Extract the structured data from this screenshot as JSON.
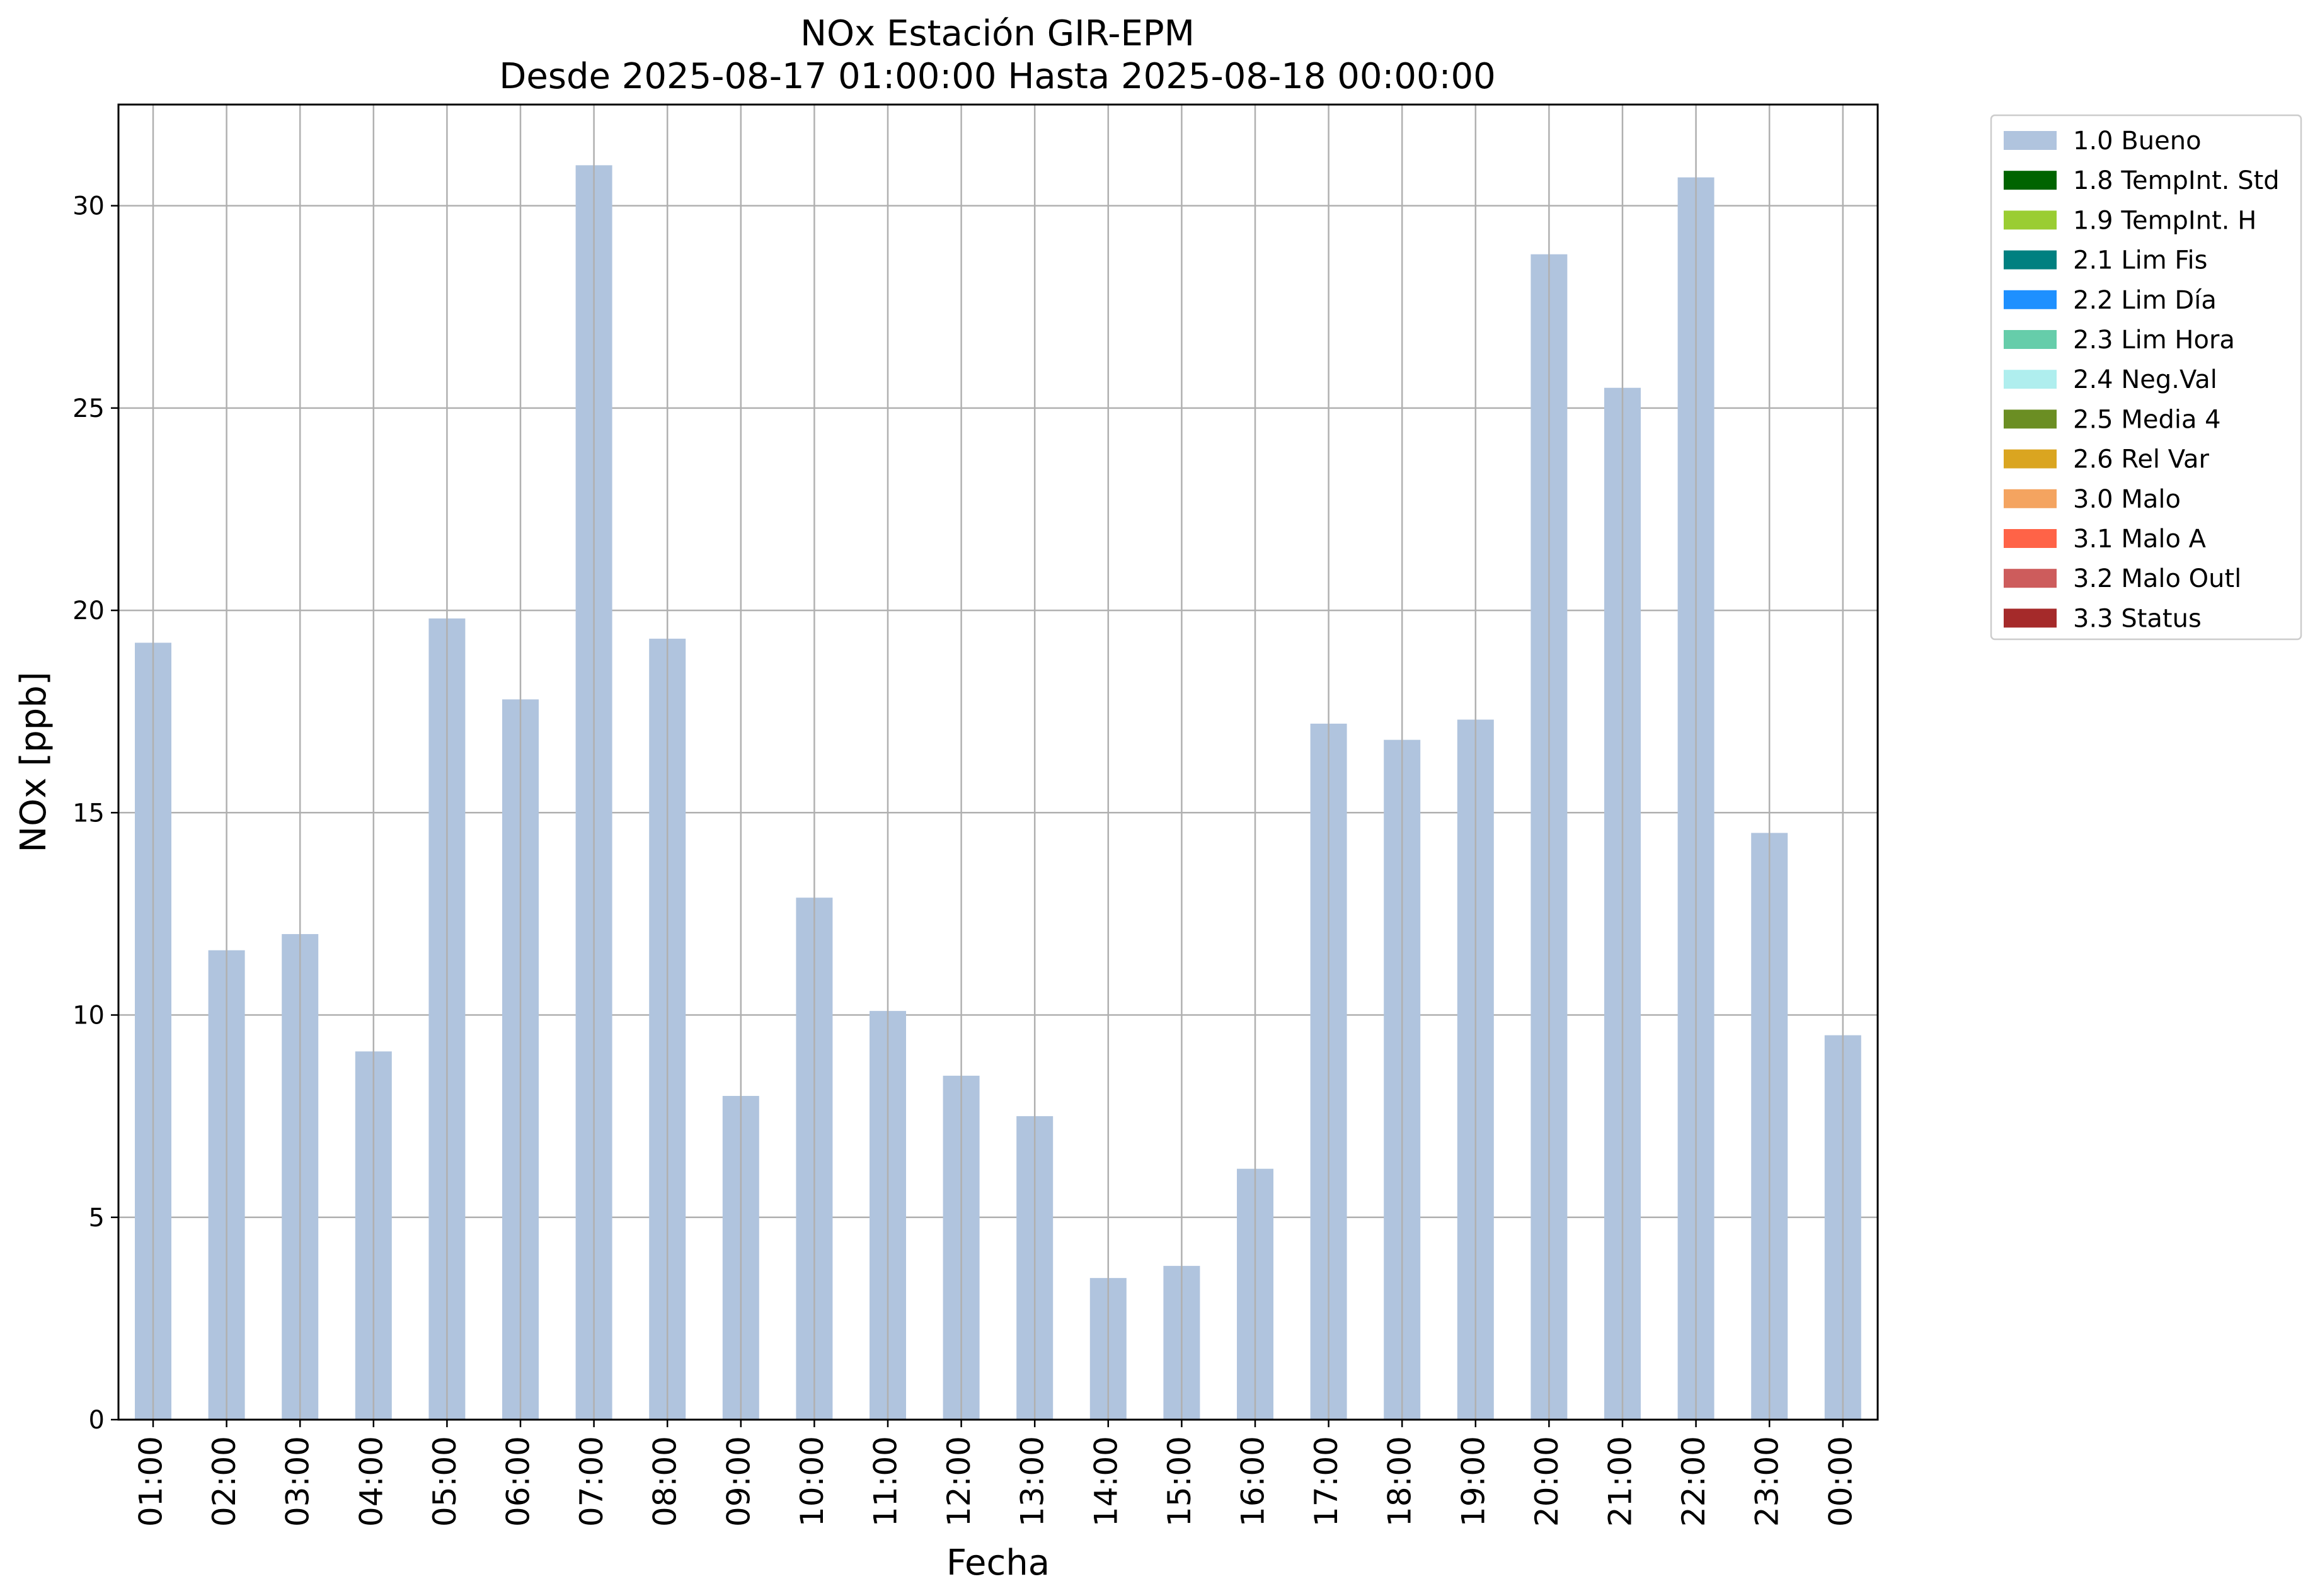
{
  "chart_data": {
    "type": "bar",
    "title": "NOx Estación GIR-EPM",
    "subtitle": "Desde 2025-08-17 01:00:00 Hasta 2025-08-18 00:00:00",
    "xlabel": "Fecha",
    "ylabel": "NOx [ppb]",
    "ylim": [
      0,
      32.5
    ],
    "yticks": [
      0,
      5,
      10,
      15,
      20,
      25,
      30
    ],
    "grid": true,
    "legend_position": "outside-right",
    "categories": [
      "01:00",
      "02:00",
      "03:00",
      "04:00",
      "05:00",
      "06:00",
      "07:00",
      "08:00",
      "09:00",
      "10:00",
      "11:00",
      "12:00",
      "13:00",
      "14:00",
      "15:00",
      "16:00",
      "17:00",
      "18:00",
      "19:00",
      "20:00",
      "21:00",
      "22:00",
      "23:00",
      "00:00"
    ],
    "series": [
      {
        "name": "1.0 Bueno",
        "color": "#b0c4de",
        "values": [
          19.2,
          11.6,
          12.0,
          9.1,
          19.8,
          17.8,
          31.0,
          19.3,
          8.0,
          12.9,
          10.1,
          8.5,
          7.5,
          3.5,
          3.8,
          6.2,
          17.2,
          16.8,
          17.3,
          28.8,
          25.5,
          30.7,
          14.5,
          9.5
        ]
      }
    ],
    "legend": [
      {
        "label": "1.0 Bueno",
        "color": "#b0c4de"
      },
      {
        "label": "1.8 TempInt. Std",
        "color": "#006400"
      },
      {
        "label": "1.9 TempInt. H",
        "color": "#9acd32"
      },
      {
        "label": "2.1 Lim Fis",
        "color": "#008080"
      },
      {
        "label": "2.2 Lim Día",
        "color": "#1e90ff"
      },
      {
        "label": "2.3 Lim Hora",
        "color": "#66cdaa"
      },
      {
        "label": "2.4 Neg.Val",
        "color": "#afeeee"
      },
      {
        "label": "2.5 Media 4",
        "color": "#6b8e23"
      },
      {
        "label": "2.6 Rel Var",
        "color": "#daa520"
      },
      {
        "label": "3.0 Malo",
        "color": "#f4a460"
      },
      {
        "label": "3.1 Malo A",
        "color": "#ff6347"
      },
      {
        "label": "3.2 Malo Outl",
        "color": "#cd5c5c"
      },
      {
        "label": "3.3 Status",
        "color": "#a52a2a"
      }
    ]
  }
}
